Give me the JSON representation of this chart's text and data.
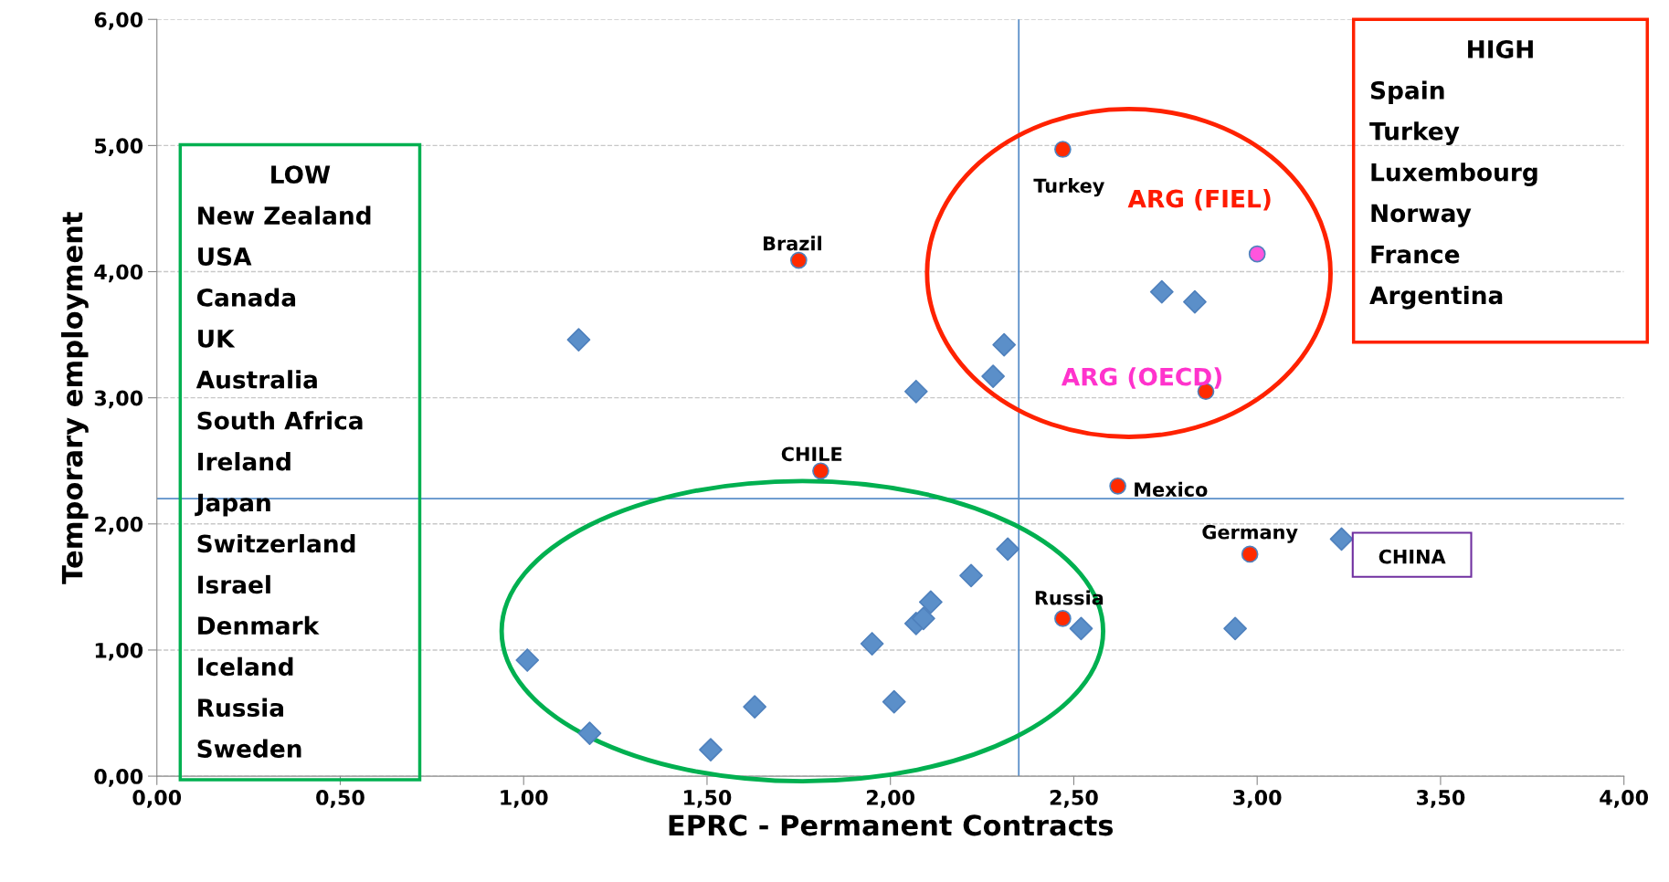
{
  "chart_data": {
    "type": "scatter",
    "xlabel": "EPRC - Permanent Contracts",
    "ylabel": "Temporary employment",
    "xlim": [
      0,
      4
    ],
    "ylim": [
      0,
      6
    ],
    "xticks": [
      {
        "value": 0,
        "label": "0,00"
      },
      {
        "value": 0.5,
        "label": "0,50"
      },
      {
        "value": 1,
        "label": "1,00"
      },
      {
        "value": 1.5,
        "label": "1,50"
      },
      {
        "value": 2,
        "label": "2,00"
      },
      {
        "value": 2.5,
        "label": "2,50"
      },
      {
        "value": 3,
        "label": "3,00"
      },
      {
        "value": 3.5,
        "label": "3,50"
      },
      {
        "value": 4,
        "label": "4,00"
      }
    ],
    "yticks": [
      {
        "value": 0,
        "label": "0,00"
      },
      {
        "value": 1,
        "label": "1,00"
      },
      {
        "value": 2,
        "label": "2,00"
      },
      {
        "value": 3,
        "label": "3,00"
      },
      {
        "value": 4,
        "label": "4,00"
      },
      {
        "value": 5,
        "label": "5,00"
      },
      {
        "value": 6,
        "label": "6,00"
      }
    ],
    "grid": "y",
    "series": [
      {
        "color": "#5b8fc9",
        "marker": "diamond",
        "x": [
          1.15,
          2.07,
          2.28,
          2.31,
          2.74,
          2.83,
          1.01,
          1.18,
          1.51,
          1.63,
          1.95,
          2.01,
          2.07,
          2.09,
          2.11,
          2.22,
          2.32,
          2.52,
          2.94,
          3.23
        ],
        "values": [
          3.46,
          3.05,
          3.17,
          3.42,
          3.84,
          3.76,
          0.92,
          0.34,
          0.21,
          0.55,
          1.05,
          0.59,
          1.21,
          1.25,
          1.38,
          1.59,
          1.8,
          1.17,
          1.17,
          1.88
        ]
      },
      {
        "color": "#ff2a00",
        "marker": "circle",
        "x": [
          2.47,
          1.75,
          1.81,
          2.62,
          2.98,
          2.47,
          2.86
        ],
        "values": [
          4.97,
          4.09,
          2.42,
          2.3,
          1.76,
          1.25,
          3.05
        ]
      },
      {
        "color": "#ff55dd",
        "marker": "circle",
        "x": [
          3.0
        ],
        "values": [
          4.14
        ]
      }
    ],
    "ref_lines": [
      {
        "axis": "x",
        "value": 2.35,
        "color": "#5b8fc9"
      },
      {
        "axis": "y",
        "value": 2.2,
        "color": "#5b8fc9"
      }
    ],
    "annotations": [
      {
        "text": "Turkey",
        "x": 2.47,
        "y": 4.97
      },
      {
        "text": "Brazil",
        "x": 1.75,
        "y": 4.09
      },
      {
        "text": "CHILE",
        "x": 1.81,
        "y": 2.42
      },
      {
        "text": "Mexico",
        "x": 2.62,
        "y": 2.3
      },
      {
        "text": "Germany",
        "x": 2.98,
        "y": 1.76
      },
      {
        "text": "Russia",
        "x": 2.47,
        "y": 1.25
      },
      {
        "text": "ARG (OECD)",
        "x": 2.86,
        "y": 3.05
      },
      {
        "text": "ARG (FIEL)",
        "x": 3.0,
        "y": 4.14
      },
      "CHINA",
      "LOW\nNew Zealand\nUSA\nCanada\nUK\nAustralia\nSouth Africa\nIreland\nJapan\nSwitzerland\nIsrael\nDenmark\nIceland\nRussia\nSweden",
      "HIGH\nSpain\nTurkey\nLuxembourg\nNorway\nFrance\nArgentina"
    ]
  }
}
